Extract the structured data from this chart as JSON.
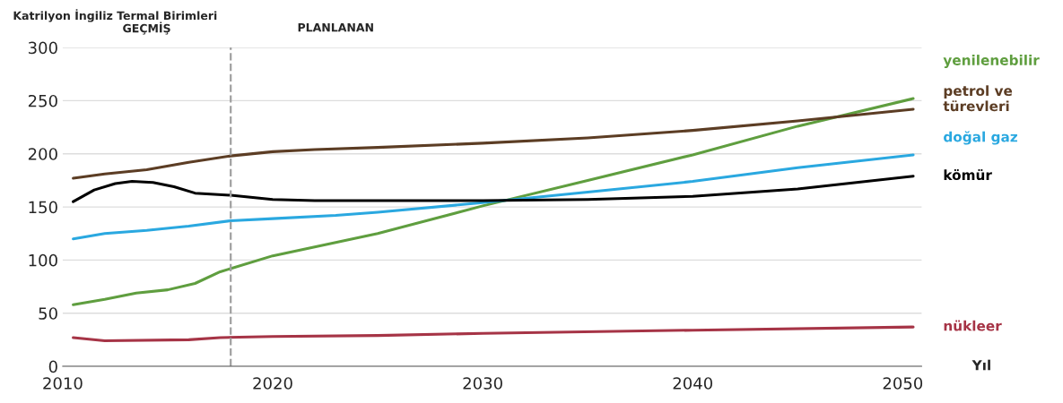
{
  "chart_data": {
    "type": "line",
    "ylabel": "Katrilyon İngiliz Termal Birimleri",
    "xlabel": "Yıl",
    "xlim": [
      2010,
      2050.9
    ],
    "xticks": [
      2010,
      2020,
      2030,
      2040,
      2050
    ],
    "ylim": [
      0,
      300
    ],
    "yticks": [
      0,
      50,
      100,
      150,
      200,
      250,
      300
    ],
    "grid": "y",
    "legend": false,
    "annotations": [
      "GEÇMİŞ",
      "PLANLANAN"
    ],
    "ref_lines": [
      {
        "axis": "x",
        "value": 2018,
        "color": "#a0a0a0",
        "line_style": "dashed"
      }
    ],
    "series": [
      {
        "name": "yenilenebilir",
        "color": "#5f9e3f",
        "x": [
          2010.5,
          2012,
          2013.5,
          2015,
          2016.3,
          2017.5,
          2020,
          2025,
          2030,
          2035,
          2040,
          2045,
          2050.5
        ],
        "values": [
          58,
          63,
          69,
          72,
          78,
          89,
          104,
          125,
          151,
          175,
          199,
          226,
          252
        ]
      },
      {
        "name": "petrol ve\ntürevleri",
        "color": "#5c3d24",
        "x": [
          2010.5,
          2012,
          2014,
          2016,
          2018,
          2020,
          2022,
          2025,
          2030,
          2035,
          2040,
          2045,
          2050.5
        ],
        "values": [
          177,
          181,
          185,
          192,
          198,
          202,
          204,
          206,
          210,
          215,
          222,
          231,
          242
        ]
      },
      {
        "name": "doğal gaz",
        "color": "#2aa8e0",
        "x": [
          2010.5,
          2012,
          2014,
          2016,
          2018,
          2020,
          2023,
          2025,
          2030,
          2035,
          2040,
          2045,
          2050.5
        ],
        "values": [
          120,
          125,
          128,
          132,
          137,
          139,
          142,
          145,
          154,
          164,
          174,
          187,
          199
        ]
      },
      {
        "name": "kömür",
        "color": "#000000",
        "x": [
          2010.5,
          2011.5,
          2012.5,
          2013.3,
          2014.3,
          2015.3,
          2016.3,
          2018,
          2020,
          2022,
          2026,
          2030,
          2035,
          2040,
          2045,
          2050.5
        ],
        "values": [
          155,
          166,
          172,
          174,
          173,
          169,
          163,
          161,
          157,
          156,
          156,
          156,
          157,
          160,
          167,
          179
        ]
      },
      {
        "name": "nükleer",
        "color": "#a63446",
        "x": [
          2010.5,
          2012,
          2016,
          2017.5,
          2020,
          2025,
          2030,
          2040,
          2050.5
        ],
        "values": [
          27,
          24,
          25,
          27,
          28,
          29,
          31,
          34,
          37
        ]
      }
    ]
  }
}
